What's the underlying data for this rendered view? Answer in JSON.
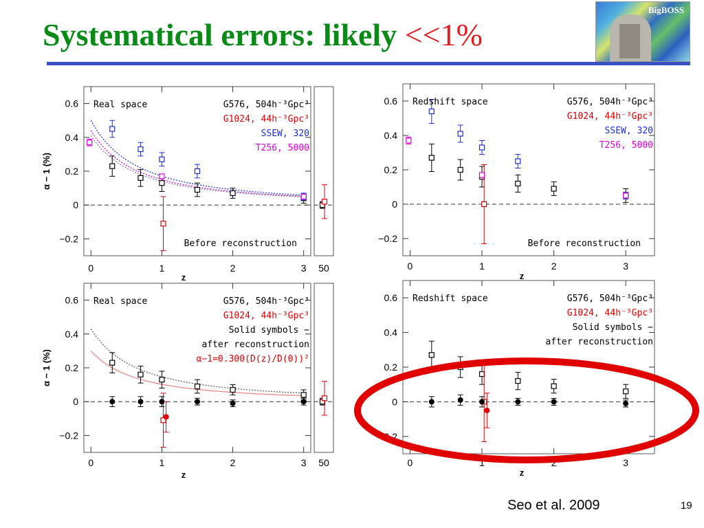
{
  "slide": {
    "title_main": "Systematical errors: likely ",
    "title_highlight": "<<1%",
    "logo_text": "BigBOSS",
    "citation": "Seo et al. 2009",
    "page_number": "19",
    "colors": {
      "title": "#0a8a16",
      "highlight": "#e11d1d",
      "rule": "#3a4fc4",
      "circle": "#e00000"
    }
  },
  "chart_data": [
    {
      "type": "scatter",
      "panel": "top-left",
      "label": "Real space",
      "note": "Before reconstruction",
      "xlabel": "z",
      "ylabel": "α − 1 (%)",
      "xlim": [
        -0.1,
        3.1
      ],
      "ylim": [
        -0.3,
        0.7
      ],
      "x_ticks": [
        "0",
        "1",
        "2",
        "3"
      ],
      "y_ticks": [
        "0.6",
        "0.4",
        "0.2",
        "0",
        "−0.2"
      ],
      "extra_x_tick": "50",
      "legend": [
        {
          "text": "G576, 504h⁻³Gpc³",
          "color": "#000000"
        },
        {
          "text": "G1024, 44h⁻³Gpc³",
          "color": "#e00000"
        },
        {
          "text": "SSEW, 320",
          "color": "#1a2ee0"
        },
        {
          "text": "T256, 5000",
          "color": "#e000e0"
        }
      ],
      "series": [
        {
          "name": "G576, 504h⁻³Gpc³",
          "color": "#000000",
          "symbol": "open-square",
          "points": [
            [
              0.3,
              0.23,
              0.06
            ],
            [
              0.7,
              0.16,
              0.05
            ],
            [
              1.0,
              0.13,
              0.05
            ],
            [
              1.5,
              0.09,
              0.04
            ],
            [
              2.0,
              0.07,
              0.03
            ],
            [
              3.0,
              0.04,
              0.03
            ]
          ]
        },
        {
          "name": "G1024, 44h⁻³Gpc³",
          "color": "#e00000",
          "symbol": "open-square",
          "points": [
            [
              1.02,
              -0.11,
              0.16
            ]
          ]
        },
        {
          "name": "SSEW, 320",
          "color": "#1a2ee0",
          "symbol": "open-square",
          "points": [
            [
              0.3,
              0.45,
              0.05
            ],
            [
              0.7,
              0.33,
              0.04
            ],
            [
              1.0,
              0.27,
              0.04
            ],
            [
              1.5,
              0.2,
              0.04
            ],
            [
              3.0,
              0.05,
              0.02
            ]
          ]
        },
        {
          "name": "T256, 5000",
          "color": "#e000e0",
          "symbol": "open-square",
          "points": [
            [
              -0.02,
              0.37,
              0.02
            ],
            [
              1.0,
              0.17,
              0.01
            ],
            [
              3.0,
              0.05,
              0.01
            ]
          ]
        }
      ],
      "side_points_z50": [
        {
          "color": "#000000",
          "symbol": "open-square",
          "y": 0.0,
          "err": 0.02
        },
        {
          "color": "#e00000",
          "symbol": "open-square",
          "y": 0.02,
          "err": 0.1
        }
      ],
      "curves": [
        {
          "color": "#1a2ee0",
          "style": "dotted",
          "y0": 0.5
        },
        {
          "color": "#e000e0",
          "style": "dotted",
          "y0": 0.44
        },
        {
          "color": "#7a7aa0",
          "style": "dotted",
          "y0": 0.41
        }
      ]
    },
    {
      "type": "scatter",
      "panel": "top-right",
      "label": "Redshift space",
      "note": "Before reconstruction",
      "xlabel": "z",
      "ylabel": "",
      "xlim": [
        -0.1,
        3.4
      ],
      "ylim": [
        -0.3,
        0.7
      ],
      "x_ticks": [
        "0",
        "1",
        "2",
        "3"
      ],
      "y_ticks": [
        "0.6",
        "0.4",
        "0.2",
        "0",
        "−0.2"
      ],
      "legend": [
        {
          "text": "G576, 504h⁻³Gpc³",
          "color": "#000000"
        },
        {
          "text": "G1024, 44h⁻³Gpc³",
          "color": "#e00000"
        },
        {
          "text": "SSEW, 320",
          "color": "#1a2ee0"
        },
        {
          "text": "T256, 5000",
          "color": "#e000e0"
        }
      ],
      "series": [
        {
          "name": "G576, 504h⁻³Gpc³",
          "color": "#000000",
          "symbol": "open-square",
          "points": [
            [
              0.3,
              0.27,
              0.08
            ],
            [
              0.7,
              0.2,
              0.06
            ],
            [
              1.0,
              0.16,
              0.06
            ],
            [
              1.5,
              0.12,
              0.05
            ],
            [
              2.0,
              0.09,
              0.04
            ],
            [
              3.0,
              0.05,
              0.04
            ]
          ]
        },
        {
          "name": "G1024, 44h⁻³Gpc³",
          "color": "#e00000",
          "symbol": "open-square",
          "points": [
            [
              1.03,
              0.0,
              0.23
            ]
          ]
        },
        {
          "name": "SSEW, 320",
          "color": "#1a2ee0",
          "symbol": "open-square",
          "points": [
            [
              0.3,
              0.54,
              0.07
            ],
            [
              0.7,
              0.41,
              0.05
            ],
            [
              1.0,
              0.33,
              0.04
            ],
            [
              1.5,
              0.25,
              0.04
            ],
            [
              3.0,
              0.05,
              0.02
            ]
          ]
        },
        {
          "name": "T256, 5000",
          "color": "#e000e0",
          "symbol": "open-square",
          "points": [
            [
              -0.02,
              0.37,
              0.02
            ],
            [
              1.0,
              0.17,
              0.01
            ],
            [
              3.0,
              0.05,
              0.01
            ]
          ]
        }
      ]
    },
    {
      "type": "scatter",
      "panel": "bottom-left",
      "label": "Real space",
      "xlabel": "z",
      "ylabel": "α − 1 (%)",
      "xlim": [
        -0.1,
        3.1
      ],
      "ylim": [
        -0.3,
        0.7
      ],
      "x_ticks": [
        "0",
        "1",
        "2",
        "3"
      ],
      "y_ticks": [
        "0.6",
        "0.4",
        "0.2",
        "0",
        "−0.2"
      ],
      "extra_x_tick": "50",
      "legend": [
        {
          "text": "G576, 504h⁻³Gpc³",
          "color": "#000000"
        },
        {
          "text": "G1024, 44h⁻³Gpc³",
          "color": "#e00000"
        },
        {
          "text": "Solid symbols −",
          "color": "#000000"
        },
        {
          "text": "after reconstruction",
          "color": "#000000"
        },
        {
          "text": "α−1=0.300(D(z)/D(0))²",
          "color": "#e00000"
        }
      ],
      "series": [
        {
          "name": "G576, 504h⁻³Gpc³",
          "color": "#000000",
          "symbol": "open-square",
          "points": [
            [
              0.3,
              0.23,
              0.06
            ],
            [
              0.7,
              0.16,
              0.05
            ],
            [
              1.0,
              0.13,
              0.05
            ],
            [
              1.5,
              0.09,
              0.04
            ],
            [
              2.0,
              0.07,
              0.03
            ],
            [
              3.0,
              0.04,
              0.03
            ]
          ]
        },
        {
          "name": "G1024, 44h⁻³Gpc³",
          "color": "#e00000",
          "symbol": "open-square",
          "points": [
            [
              1.02,
              -0.11,
              0.16
            ]
          ]
        },
        {
          "name": "after reconstruction",
          "color": "#000000",
          "symbol": "filled-circle",
          "points": [
            [
              0.3,
              0.0,
              0.03
            ],
            [
              0.7,
              0.0,
              0.03
            ],
            [
              1.0,
              0.0,
              0.03
            ],
            [
              1.5,
              0.0,
              0.02
            ],
            [
              2.0,
              -0.01,
              0.02
            ],
            [
              3.0,
              0.0,
              0.02
            ]
          ]
        },
        {
          "name": "G1024 after reconstruction",
          "color": "#e00000",
          "symbol": "filled-circle",
          "points": [
            [
              1.06,
              -0.09,
              0.09
            ]
          ]
        }
      ],
      "side_points_z50": [
        {
          "color": "#000000",
          "symbol": "open-square",
          "y": 0.0,
          "err": 0.02
        },
        {
          "color": "#e00000",
          "symbol": "open-square",
          "y": 0.02,
          "err": 0.1
        }
      ],
      "curves": [
        {
          "color": "#555555",
          "style": "dotted",
          "y0": 0.43
        },
        {
          "color": "#f08080",
          "style": "solid",
          "y0": 0.3
        }
      ]
    },
    {
      "type": "scatter",
      "panel": "bottom-right",
      "label": "Redshift space",
      "xlabel": "z",
      "ylabel": "",
      "xlim": [
        -0.1,
        3.4
      ],
      "ylim": [
        -0.3,
        0.7
      ],
      "x_ticks": [
        "0",
        "1",
        "2",
        "3"
      ],
      "y_ticks": [
        "0.6",
        "0.4",
        "0.2",
        "0",
        "−0.2"
      ],
      "legend": [
        {
          "text": "G576, 504h⁻³Gpc³",
          "color": "#000000"
        },
        {
          "text": "G1024, 44h⁻³Gpc³",
          "color": "#e00000"
        },
        {
          "text": "Solid symbols −",
          "color": "#000000"
        },
        {
          "text": "after reconstruction",
          "color": "#000000"
        }
      ],
      "series": [
        {
          "name": "G576, 504h⁻³Gpc³",
          "color": "#000000",
          "symbol": "open-square",
          "points": [
            [
              0.3,
              0.27,
              0.08
            ],
            [
              0.7,
              0.2,
              0.06
            ],
            [
              1.0,
              0.16,
              0.06
            ],
            [
              1.5,
              0.12,
              0.05
            ],
            [
              2.0,
              0.09,
              0.04
            ],
            [
              3.0,
              0.06,
              0.04
            ]
          ]
        },
        {
          "name": "G1024, 44h⁻³Gpc³",
          "color": "#e00000",
          "symbol": "open-square",
          "points": [
            [
              1.03,
              0.0,
              0.23
            ]
          ]
        },
        {
          "name": "after reconstruction",
          "color": "#000000",
          "symbol": "filled-circle",
          "points": [
            [
              0.3,
              0.0,
              0.03
            ],
            [
              0.7,
              0.01,
              0.03
            ],
            [
              1.0,
              0.0,
              0.03
            ],
            [
              1.5,
              0.0,
              0.02
            ],
            [
              2.0,
              0.0,
              0.02
            ],
            [
              3.0,
              -0.01,
              0.02
            ]
          ]
        },
        {
          "name": "G1024 after reconstruction",
          "color": "#e00000",
          "symbol": "filled-circle",
          "points": [
            [
              1.07,
              -0.05,
              0.1
            ]
          ]
        }
      ]
    }
  ]
}
